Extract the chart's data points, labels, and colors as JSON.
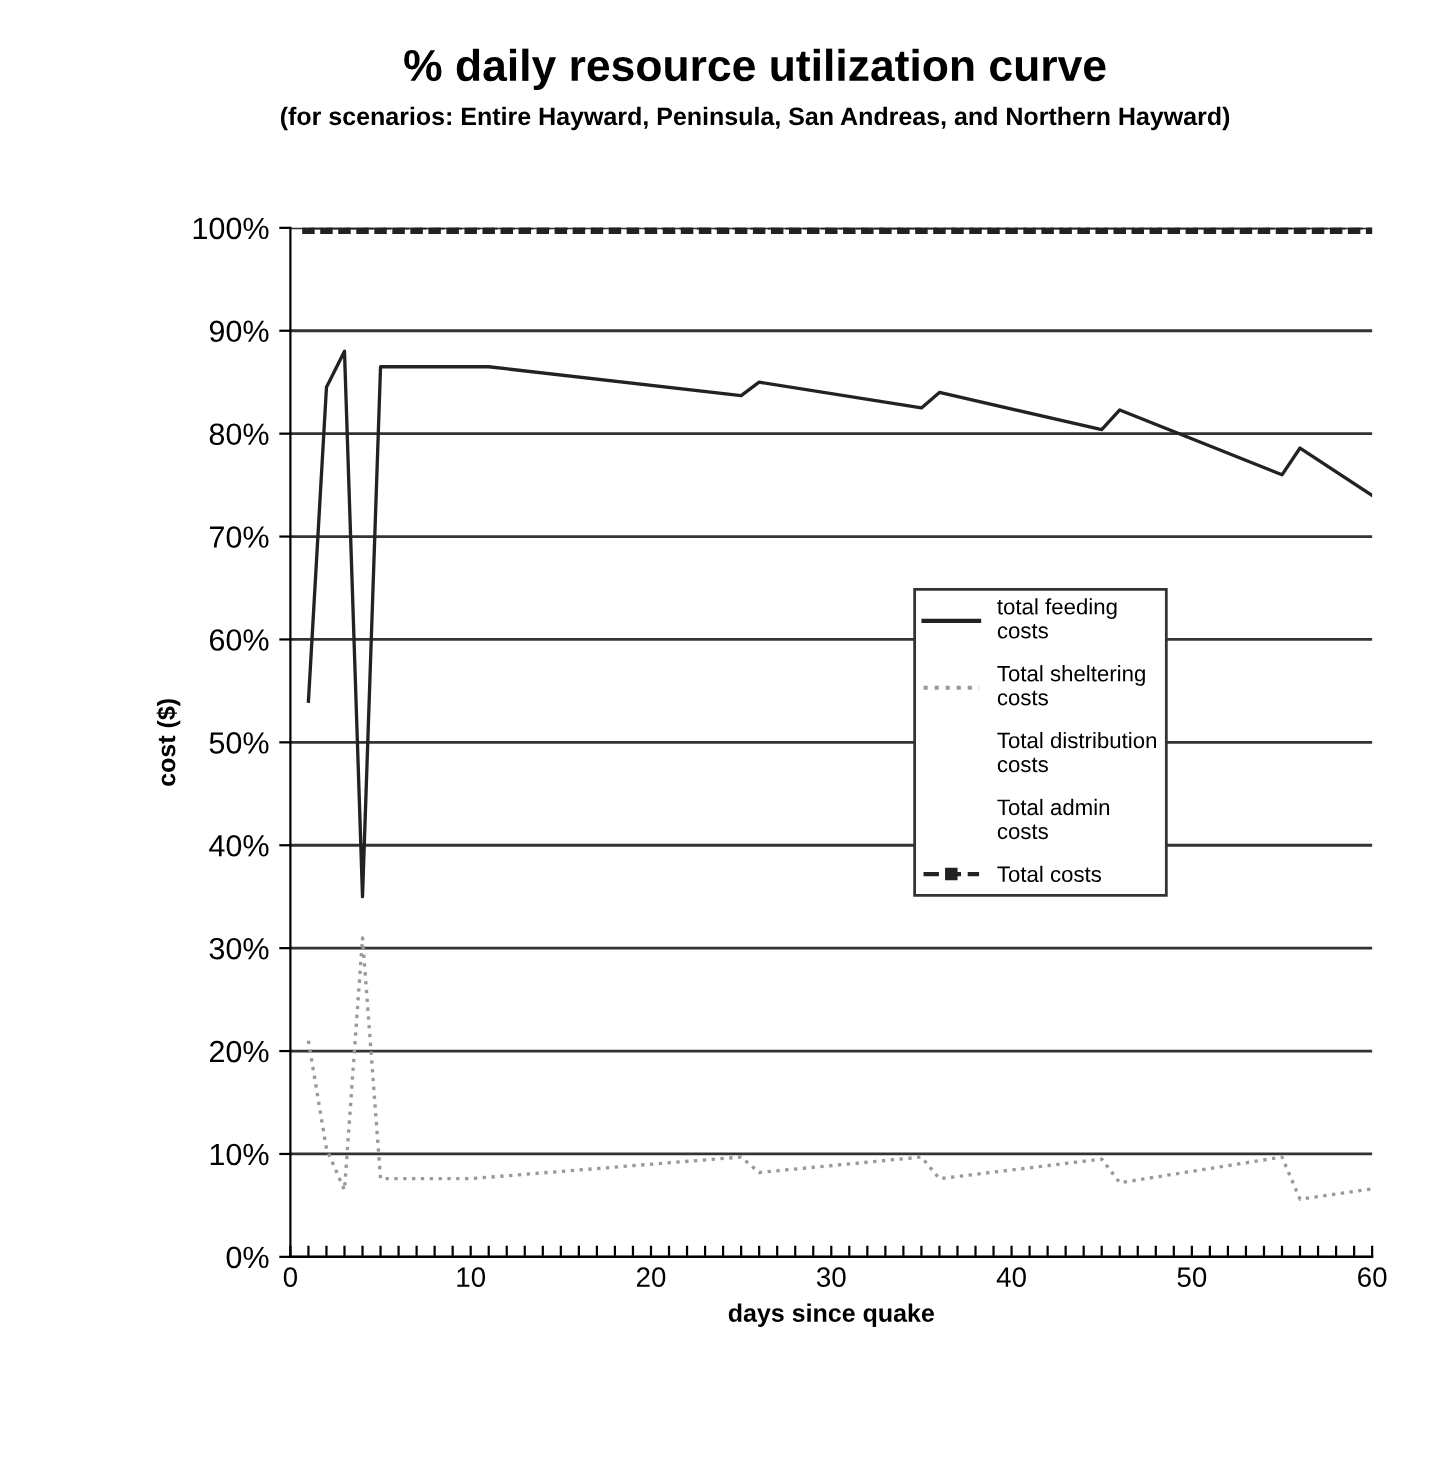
{
  "chart_data": {
    "type": "line",
    "title": "% daily resource utilization curve",
    "subtitle": "(for scenarios: Entire Hayward, Peninsula, San Andreas, and Northern Hayward)",
    "xlabel": "days since quake",
    "ylabel": "cost ($)",
    "xlim": [
      0,
      60
    ],
    "ylim": [
      0,
      100
    ],
    "xticks": [
      0,
      {
        "value": 1,
        "label": null
      },
      {
        "value": 2,
        "label": null
      },
      {
        "value": 3,
        "label": null
      },
      {
        "value": 4,
        "label": null
      },
      {
        "value": 5,
        "label": null
      },
      {
        "value": 6,
        "label": null
      },
      {
        "value": 7,
        "label": null
      },
      {
        "value": 8,
        "label": null
      },
      {
        "value": 9,
        "label": null
      },
      10,
      {
        "value": 11,
        "label": null
      },
      {
        "value": 12,
        "label": null
      },
      {
        "value": 13,
        "label": null
      },
      {
        "value": 14,
        "label": null
      },
      {
        "value": 15,
        "label": null
      },
      {
        "value": 16,
        "label": null
      },
      {
        "value": 17,
        "label": null
      },
      {
        "value": 18,
        "label": null
      },
      {
        "value": 19,
        "label": null
      },
      20,
      {
        "value": 21,
        "label": null
      },
      {
        "value": 22,
        "label": null
      },
      {
        "value": 23,
        "label": null
      },
      {
        "value": 24,
        "label": null
      },
      {
        "value": 25,
        "label": null
      },
      {
        "value": 26,
        "label": null
      },
      {
        "value": 27,
        "label": null
      },
      {
        "value": 28,
        "label": null
      },
      {
        "value": 29,
        "label": null
      },
      30,
      {
        "value": 31,
        "label": null
      },
      {
        "value": 32,
        "label": null
      },
      {
        "value": 33,
        "label": null
      },
      {
        "value": 34,
        "label": null
      },
      {
        "value": 35,
        "label": null
      },
      {
        "value": 36,
        "label": null
      },
      {
        "value": 37,
        "label": null
      },
      {
        "value": 38,
        "label": null
      },
      {
        "value": 39,
        "label": null
      },
      40,
      {
        "value": 41,
        "label": null
      },
      {
        "value": 42,
        "label": null
      },
      {
        "value": 43,
        "label": null
      },
      {
        "value": 44,
        "label": null
      },
      {
        "value": 45,
        "label": null
      },
      {
        "value": 46,
        "label": null
      },
      {
        "value": 47,
        "label": null
      },
      {
        "value": 48,
        "label": null
      },
      {
        "value": 49,
        "label": null
      },
      50,
      {
        "value": 51,
        "label": null
      },
      {
        "value": 52,
        "label": null
      },
      {
        "value": 53,
        "label": null
      },
      {
        "value": 54,
        "label": null
      },
      {
        "value": 55,
        "label": null
      },
      {
        "value": 56,
        "label": null
      },
      {
        "value": 57,
        "label": null
      },
      {
        "value": 58,
        "label": null
      },
      {
        "value": 59,
        "label": null
      },
      60
    ],
    "yticks": [
      {
        "value": 0,
        "label": "0%"
      },
      {
        "value": 10,
        "label": "10%"
      },
      {
        "value": 20,
        "label": "20%"
      },
      {
        "value": 30,
        "label": "30%"
      },
      {
        "value": 40,
        "label": "40%"
      },
      {
        "value": 50,
        "label": "50%"
      },
      {
        "value": 60,
        "label": "60%"
      },
      {
        "value": 70,
        "label": "70%"
      },
      {
        "value": 80,
        "label": "80%"
      },
      {
        "value": 90,
        "label": "90%"
      },
      {
        "value": 100,
        "label": "100%"
      }
    ],
    "grid": "y",
    "legend": "right",
    "series": [
      {
        "name": "total feeding costs",
        "color": "#222222",
        "line_style": "solid",
        "x": [
          1,
          2,
          3,
          4,
          5,
          11,
          25,
          26,
          35,
          36,
          45,
          46,
          55,
          56,
          60
        ],
        "values": [
          54,
          84.5,
          88,
          35,
          86.5,
          86.5,
          83.7,
          85,
          82.5,
          84,
          80.4,
          82.3,
          76,
          78.6,
          74
        ]
      },
      {
        "name": "Total sheltering costs",
        "color": "#999999",
        "line_style": "dotted",
        "x": [
          1,
          2,
          3,
          4,
          5,
          10,
          25,
          26,
          35,
          36,
          45,
          46,
          55,
          56,
          60
        ],
        "values": [
          21,
          10.5,
          6.5,
          31,
          7.6,
          7.6,
          9.7,
          8.2,
          9.7,
          7.6,
          9.5,
          7.2,
          9.7,
          5.6,
          6.6
        ]
      },
      {
        "name": "Total distribution costs"
      },
      {
        "name": "Total admin costs"
      },
      {
        "name": "Total costs",
        "color": "#222222",
        "line_style": "dashed",
        "marker": "square",
        "x": [
          1,
          2,
          3,
          4,
          5,
          6,
          7,
          8,
          9,
          10,
          11,
          12,
          13,
          14,
          15,
          16,
          17,
          18,
          19,
          20,
          21,
          22,
          23,
          24,
          25,
          26,
          27,
          28,
          29,
          30,
          31,
          32,
          33,
          34,
          35,
          36,
          37,
          38,
          39,
          40,
          41,
          42,
          43,
          44,
          45,
          46,
          47,
          48,
          49,
          50,
          51,
          52,
          53,
          54,
          55,
          56,
          57,
          58,
          59,
          60
        ],
        "values": [
          100,
          100,
          100,
          100,
          100,
          100,
          100,
          100,
          100,
          100,
          100,
          100,
          100,
          100,
          100,
          100,
          100,
          100,
          100,
          100,
          100,
          100,
          100,
          100,
          100,
          100,
          100,
          100,
          100,
          100,
          100,
          100,
          100,
          100,
          100,
          100,
          100,
          100,
          100,
          100,
          100,
          100,
          100,
          100,
          100,
          100,
          100,
          100,
          100,
          100,
          100,
          100,
          100,
          100,
          100,
          100,
          100,
          100,
          100,
          100
        ]
      }
    ]
  }
}
